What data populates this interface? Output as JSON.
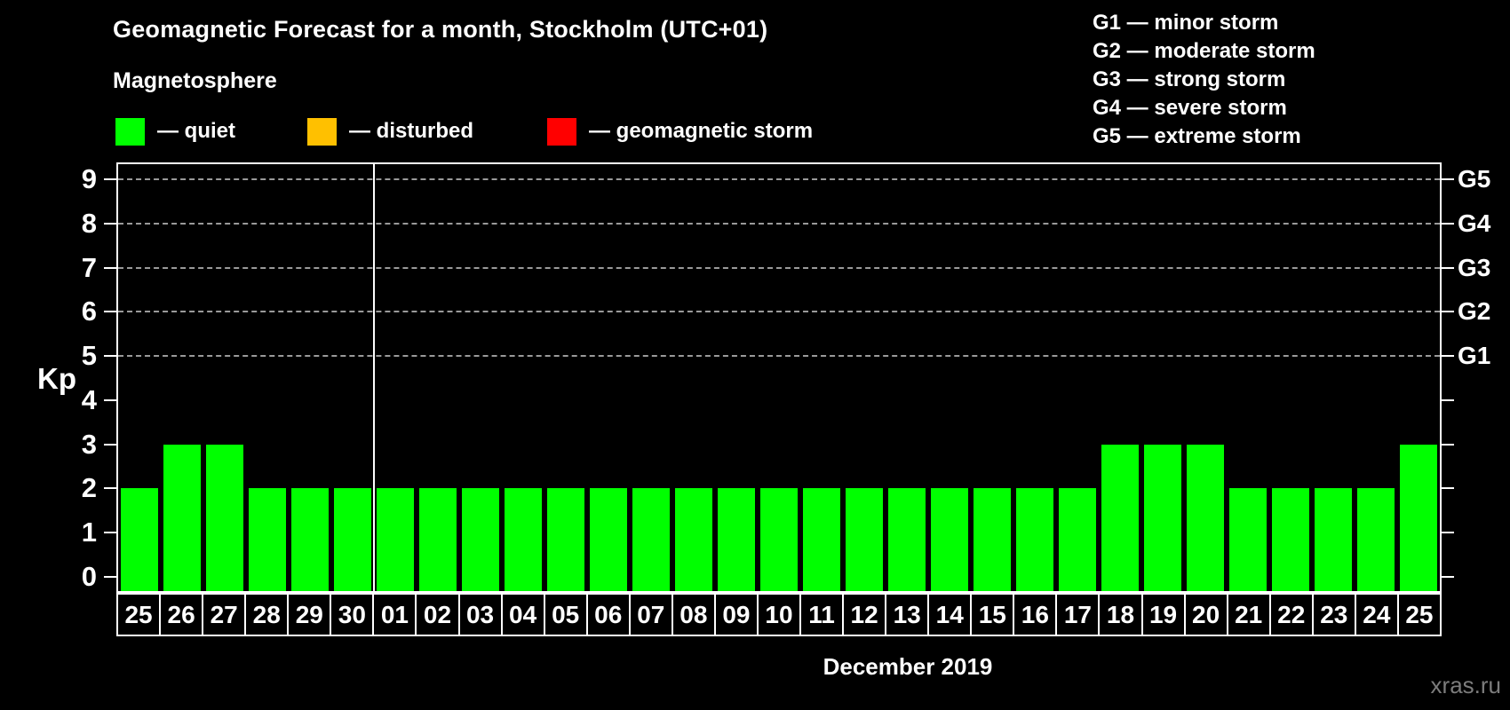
{
  "title": "Geomagnetic Forecast for a month, Stockholm (UTC+01)",
  "subtitle": "Magnetosphere",
  "legend": {
    "items": [
      {
        "label": "— quiet",
        "color": "#00ff00"
      },
      {
        "label": "— disturbed",
        "color": "#ffc000"
      },
      {
        "label": "— geomagnetic storm",
        "color": "#ff0000"
      }
    ]
  },
  "storm_legend": [
    "G1 — minor storm",
    "G2 — moderate storm",
    "G3 — strong storm",
    "G4 — severe storm",
    "G5 — extreme storm"
  ],
  "chart_data": {
    "type": "bar",
    "title": "Geomagnetic Forecast for a month, Stockholm (UTC+01)",
    "ylabel": "Kp",
    "xlabel": "December 2019",
    "ylim": [
      0,
      9
    ],
    "yticks": [
      0,
      1,
      2,
      3,
      4,
      5,
      6,
      7,
      8,
      9
    ],
    "gridlines_at_kp": [
      5,
      6,
      7,
      8,
      9
    ],
    "grid": "dashed, only at storm levels G1–G5",
    "legend_position": "top",
    "right_axis": [
      {
        "kp": 5,
        "label": "G1"
      },
      {
        "kp": 6,
        "label": "G2"
      },
      {
        "kp": 7,
        "label": "G3"
      },
      {
        "kp": 8,
        "label": "G4"
      },
      {
        "kp": 9,
        "label": "G5"
      }
    ],
    "categories": [
      "25",
      "26",
      "27",
      "28",
      "29",
      "30",
      "01",
      "02",
      "03",
      "04",
      "05",
      "06",
      "07",
      "08",
      "09",
      "10",
      "11",
      "12",
      "13",
      "14",
      "15",
      "16",
      "17",
      "18",
      "19",
      "20",
      "21",
      "22",
      "23",
      "24",
      "25"
    ],
    "values": [
      2,
      3,
      3,
      2,
      2,
      2,
      2,
      2,
      2,
      2,
      2,
      2,
      2,
      2,
      2,
      2,
      2,
      2,
      2,
      2,
      2,
      2,
      2,
      3,
      3,
      3,
      2,
      2,
      2,
      2,
      3
    ],
    "bar_color": "#00ff00",
    "month_separator_after_index": 5
  },
  "footer": {
    "month_label": "December 2019",
    "watermark": "xras.ru"
  }
}
